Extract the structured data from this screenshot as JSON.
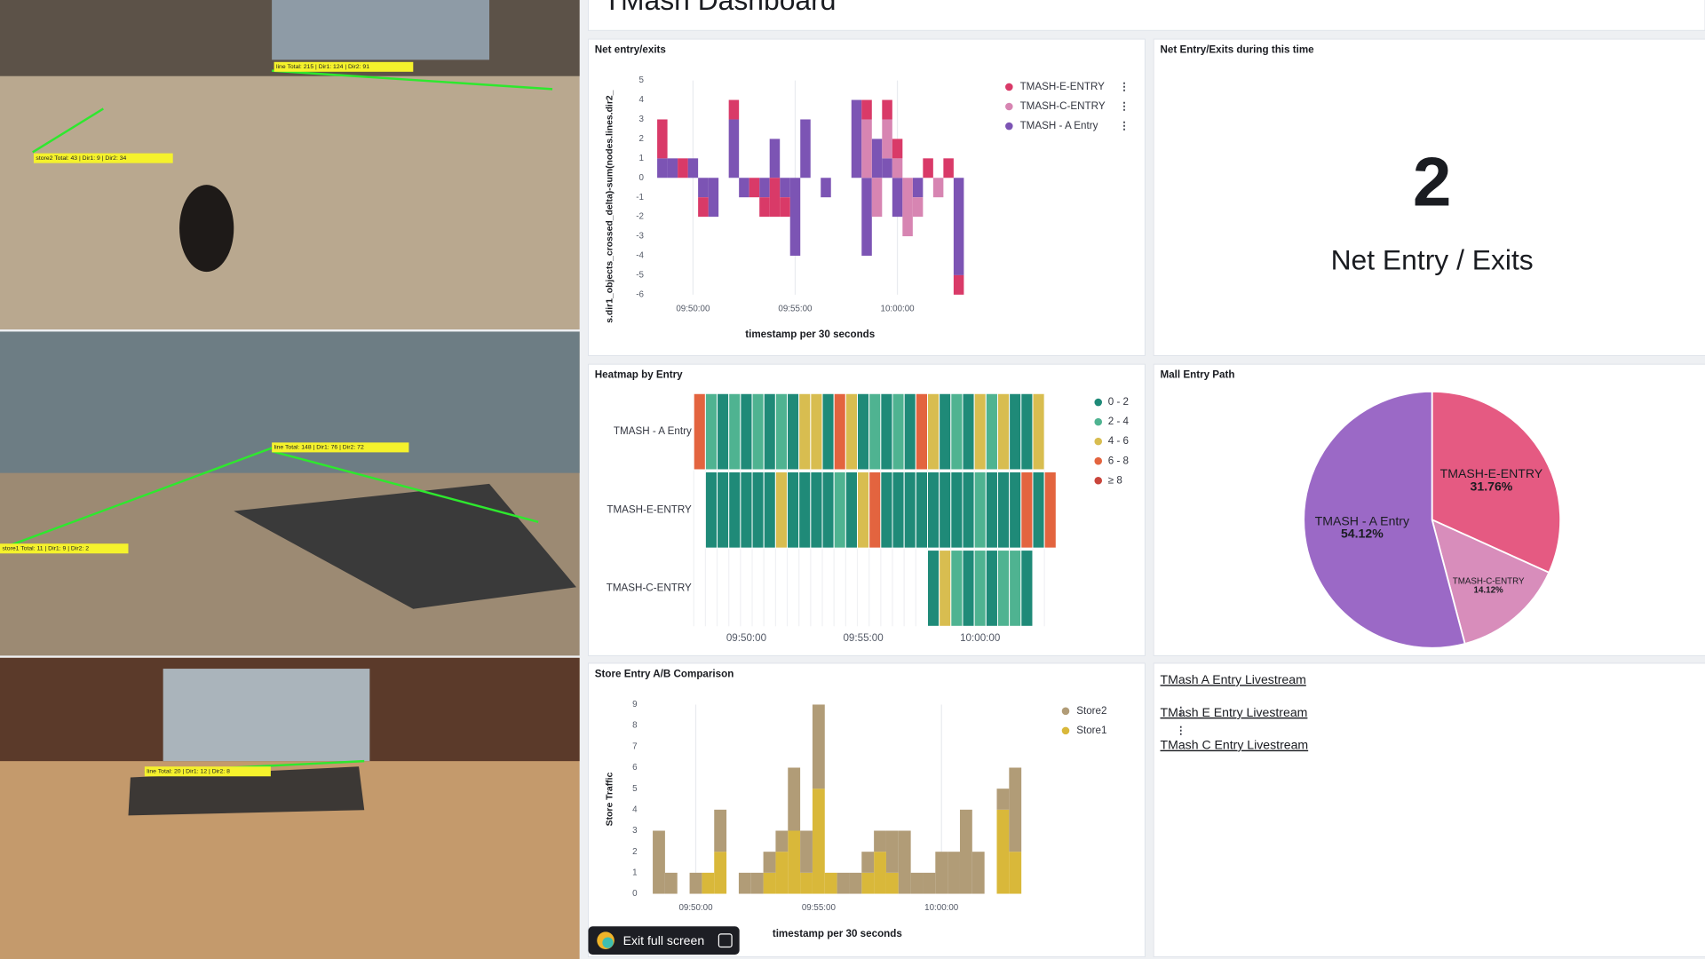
{
  "header": {
    "title": "TMash Dashboard"
  },
  "cameras": [
    {
      "overlays": [
        "line Total: 215 | Dir1: 124 | Dir2: 91",
        "store2 Total: 43 | Dir1: 9 | Dir2: 34"
      ]
    },
    {
      "overlays": [
        "line Total: 148 | Dir1: 76 | Dir2: 72",
        "store1 Total: 11 | Dir1: 9 | Dir2: 2"
      ]
    },
    {
      "overlays": [
        "line Total: 20 | Dir1: 12 | Dir2: 8"
      ]
    }
  ],
  "chart_data": [
    {
      "type": "bar",
      "stacked": true,
      "title": "Net entry/exits",
      "x_label": "timestamp per 30 seconds",
      "y_label": "s.dir1_objects_crossed_delta)-sum(nodes.lines.dir2_",
      "categories": [
        null,
        null,
        null,
        null,
        "09:50:00",
        null,
        null,
        null,
        null,
        null,
        null,
        null,
        null,
        null,
        "09:55:00",
        null,
        null,
        null,
        null,
        null,
        null,
        null,
        null,
        null,
        "10:00:00",
        null,
        null,
        null,
        null,
        null,
        null
      ],
      "series": [
        {
          "name": "TMASH-E-ENTRY",
          "color": "#d93a68",
          "values": [
            0,
            2,
            0,
            1,
            0,
            -1,
            0,
            0,
            1,
            0,
            -1,
            -1,
            -2,
            -1,
            0,
            0,
            0,
            0,
            0,
            0,
            0,
            1,
            0,
            1,
            1,
            0,
            0,
            1,
            0,
            1,
            -1
          ]
        },
        {
          "name": "TMASH-C-ENTRY",
          "color": "#d785b2",
          "values": [
            0,
            0,
            0,
            0,
            0,
            0,
            0,
            0,
            0,
            0,
            0,
            0,
            0,
            0,
            0,
            0,
            0,
            0,
            0,
            0,
            0,
            3,
            -2,
            2,
            1,
            -3,
            -1,
            0,
            -1,
            0,
            0
          ]
        },
        {
          "name": "TMASH - A Entry",
          "color": "#7c54b4",
          "values": [
            0,
            1,
            1,
            0,
            1,
            -1,
            -2,
            0,
            3,
            -1,
            0,
            -1,
            2,
            -1,
            -4,
            3,
            0,
            -1,
            0,
            0,
            4,
            -4,
            2,
            1,
            -2,
            0,
            -1,
            0,
            0,
            0,
            -5
          ]
        }
      ],
      "ylim": [
        -6,
        5
      ],
      "yticks": [
        -6,
        -5,
        -4,
        -3,
        -2,
        -1,
        0,
        1,
        2,
        3,
        4,
        5
      ],
      "grid": "x",
      "legend": "right"
    },
    {
      "type": "metric",
      "title": "Net Entry/Exits during this time",
      "value": 2,
      "label": "Net Entry / Exits"
    },
    {
      "type": "heatmap",
      "title": "Heatmap by Entry",
      "rows": [
        "TMASH - A Entry",
        "TMASH-E-ENTRY",
        "TMASH-C-ENTRY"
      ],
      "categories": [
        null,
        null,
        null,
        null,
        "09:50:00",
        null,
        null,
        null,
        null,
        null,
        null,
        null,
        null,
        null,
        "09:55:00",
        null,
        null,
        null,
        null,
        null,
        null,
        null,
        null,
        null,
        "10:00:00",
        null,
        null,
        null,
        null,
        null,
        null
      ],
      "values": [
        [
          7,
          3,
          1,
          3,
          1,
          3,
          1,
          3,
          1,
          5,
          5,
          1,
          7,
          5,
          1,
          3,
          1,
          3,
          1,
          7,
          5,
          1,
          3,
          1,
          5,
          3,
          5,
          1,
          1,
          5,
          null
        ],
        [
          null,
          1,
          1,
          1,
          1,
          1,
          1,
          5,
          1,
          1,
          1,
          1,
          3,
          1,
          5,
          7,
          1,
          1,
          1,
          1,
          1,
          1,
          1,
          1,
          3,
          1,
          1,
          1,
          7,
          1,
          7
        ],
        [
          null,
          null,
          null,
          null,
          null,
          null,
          null,
          null,
          null,
          null,
          null,
          null,
          null,
          null,
          null,
          null,
          null,
          null,
          null,
          null,
          1,
          5,
          3,
          1,
          3,
          1,
          3,
          3,
          1,
          null,
          null
        ]
      ],
      "legend": [
        {
          "label": "0 - 2",
          "min": 0,
          "color": "#1f8a78"
        },
        {
          "label": "2 - 4",
          "min": 2,
          "color": "#4fb391"
        },
        {
          "label": "4 - 6",
          "min": 4,
          "color": "#d8bd50"
        },
        {
          "label": "6 - 8",
          "min": 6,
          "color": "#e3643f"
        },
        {
          "label": "≥ 8",
          "min": 8,
          "color": "#c9453b"
        }
      ]
    },
    {
      "type": "pie",
      "title": "Mall Entry Path",
      "categories": [
        "TMASH-E-ENTRY",
        "TMASH-C-ENTRY",
        "TMASH - A Entry"
      ],
      "values": [
        31.76,
        14.12,
        54.12
      ],
      "value_labels": [
        "31.76%",
        "14.12%",
        "54.12%"
      ],
      "colors": [
        "#e55a82",
        "#d88dbb",
        "#9b69c6"
      ]
    },
    {
      "type": "bar",
      "stacked": true,
      "title": "Store Entry A/B Comparison",
      "x_label": "timestamp per 30 seconds",
      "y_label": "Store Traffic",
      "categories": [
        null,
        null,
        null,
        null,
        "09:50:00",
        null,
        null,
        null,
        null,
        null,
        null,
        null,
        null,
        null,
        "09:55:00",
        null,
        null,
        null,
        null,
        null,
        null,
        null,
        null,
        null,
        "10:00:00",
        null,
        null,
        null,
        null,
        null,
        null
      ],
      "series": [
        {
          "name": "Store2",
          "color": "#b19c77",
          "values": [
            0,
            3,
            1,
            0,
            1,
            0,
            2,
            0,
            1,
            1,
            1,
            1,
            3,
            2,
            4,
            0,
            1,
            1,
            1,
            1,
            2,
            3,
            1,
            1,
            2,
            2,
            4,
            2,
            0,
            1,
            4
          ]
        },
        {
          "name": "Store1",
          "color": "#d9b83a",
          "values": [
            0,
            0,
            0,
            0,
            0,
            1,
            2,
            0,
            0,
            0,
            1,
            2,
            3,
            1,
            5,
            1,
            0,
            0,
            1,
            2,
            1,
            0,
            0,
            0,
            0,
            0,
            0,
            0,
            0,
            4,
            2
          ]
        }
      ],
      "ylim": [
        0,
        9
      ],
      "yticks": [
        0,
        1,
        2,
        3,
        4,
        5,
        6,
        7,
        8,
        9
      ],
      "grid": "x",
      "legend": "right"
    }
  ],
  "links": [
    "TMash A Entry Livestream",
    "TMash E Entry Livestream",
    "TMash C Entry Livestream"
  ],
  "button": "Exit full screen"
}
